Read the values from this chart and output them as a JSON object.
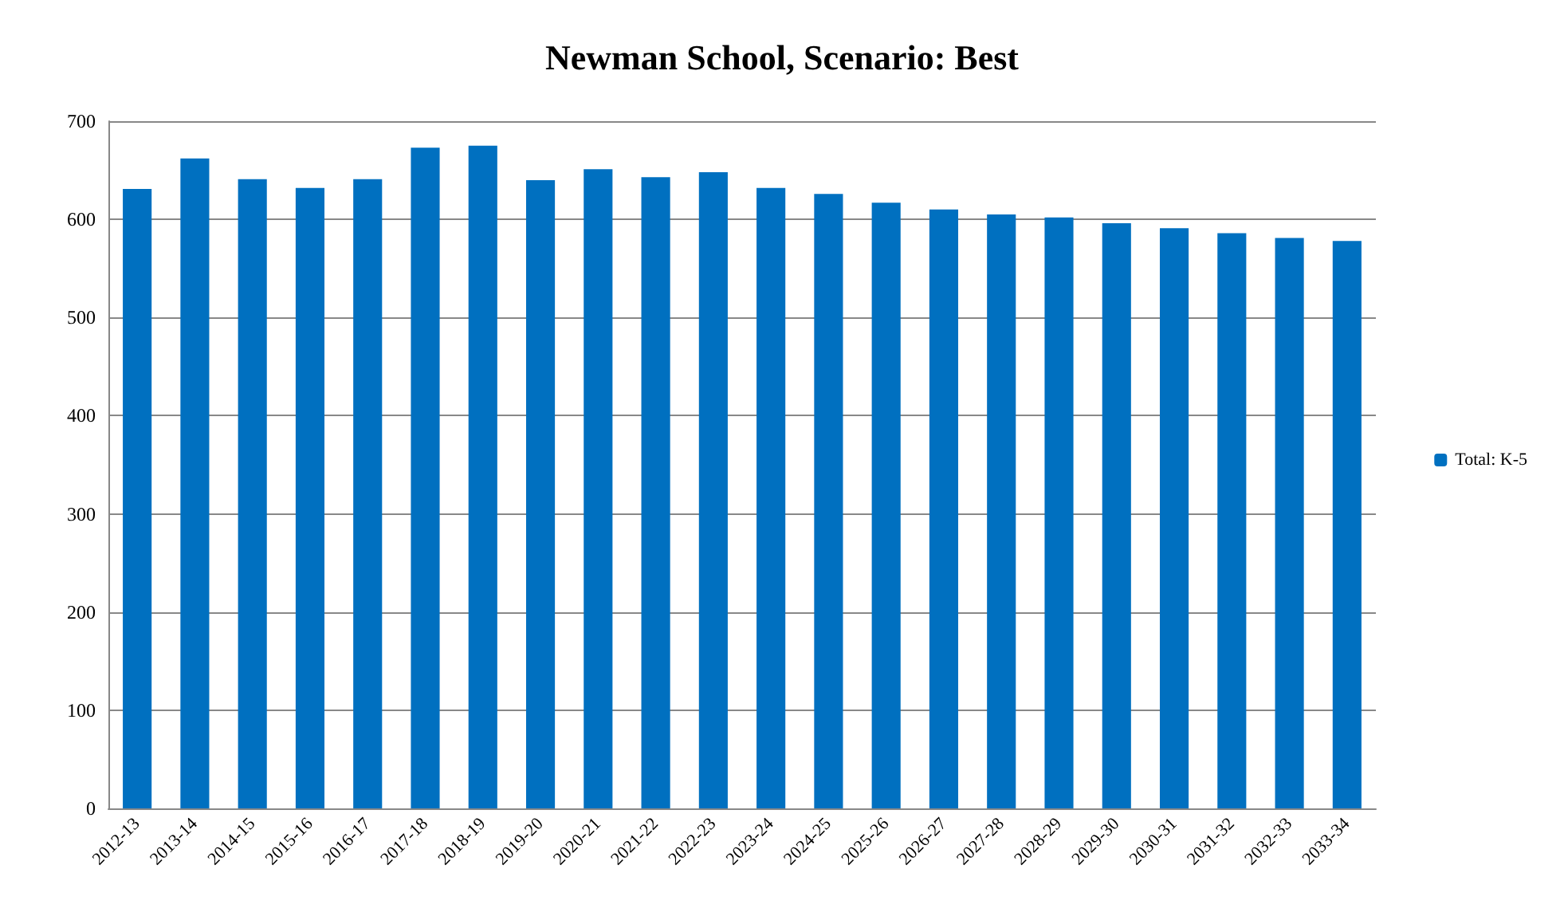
{
  "chart_data": {
    "type": "bar",
    "title": "Newman School, Scenario: Best",
    "categories": [
      "2012-13",
      "2013-14",
      "2014-15",
      "2015-16",
      "2016-17",
      "2017-18",
      "2018-19",
      "2019-20",
      "2020-21",
      "2021-22",
      "2022-23",
      "2023-24",
      "2024-25",
      "2025-26",
      "2026-27",
      "2027-28",
      "2028-29",
      "2029-30",
      "2030-31",
      "2031-32",
      "2032-33",
      "2033-34"
    ],
    "series": [
      {
        "name": "Total: K-5",
        "color": "#0070c0",
        "values": [
          631,
          662,
          641,
          632,
          641,
          673,
          675,
          640,
          651,
          643,
          648,
          632,
          626,
          617,
          610,
          605,
          602,
          596,
          591,
          586,
          581,
          578
        ]
      }
    ],
    "ylim": [
      0,
      700
    ],
    "yticks": [
      0,
      100,
      200,
      300,
      400,
      500,
      600,
      700
    ],
    "grid": "y",
    "legend": "right"
  }
}
